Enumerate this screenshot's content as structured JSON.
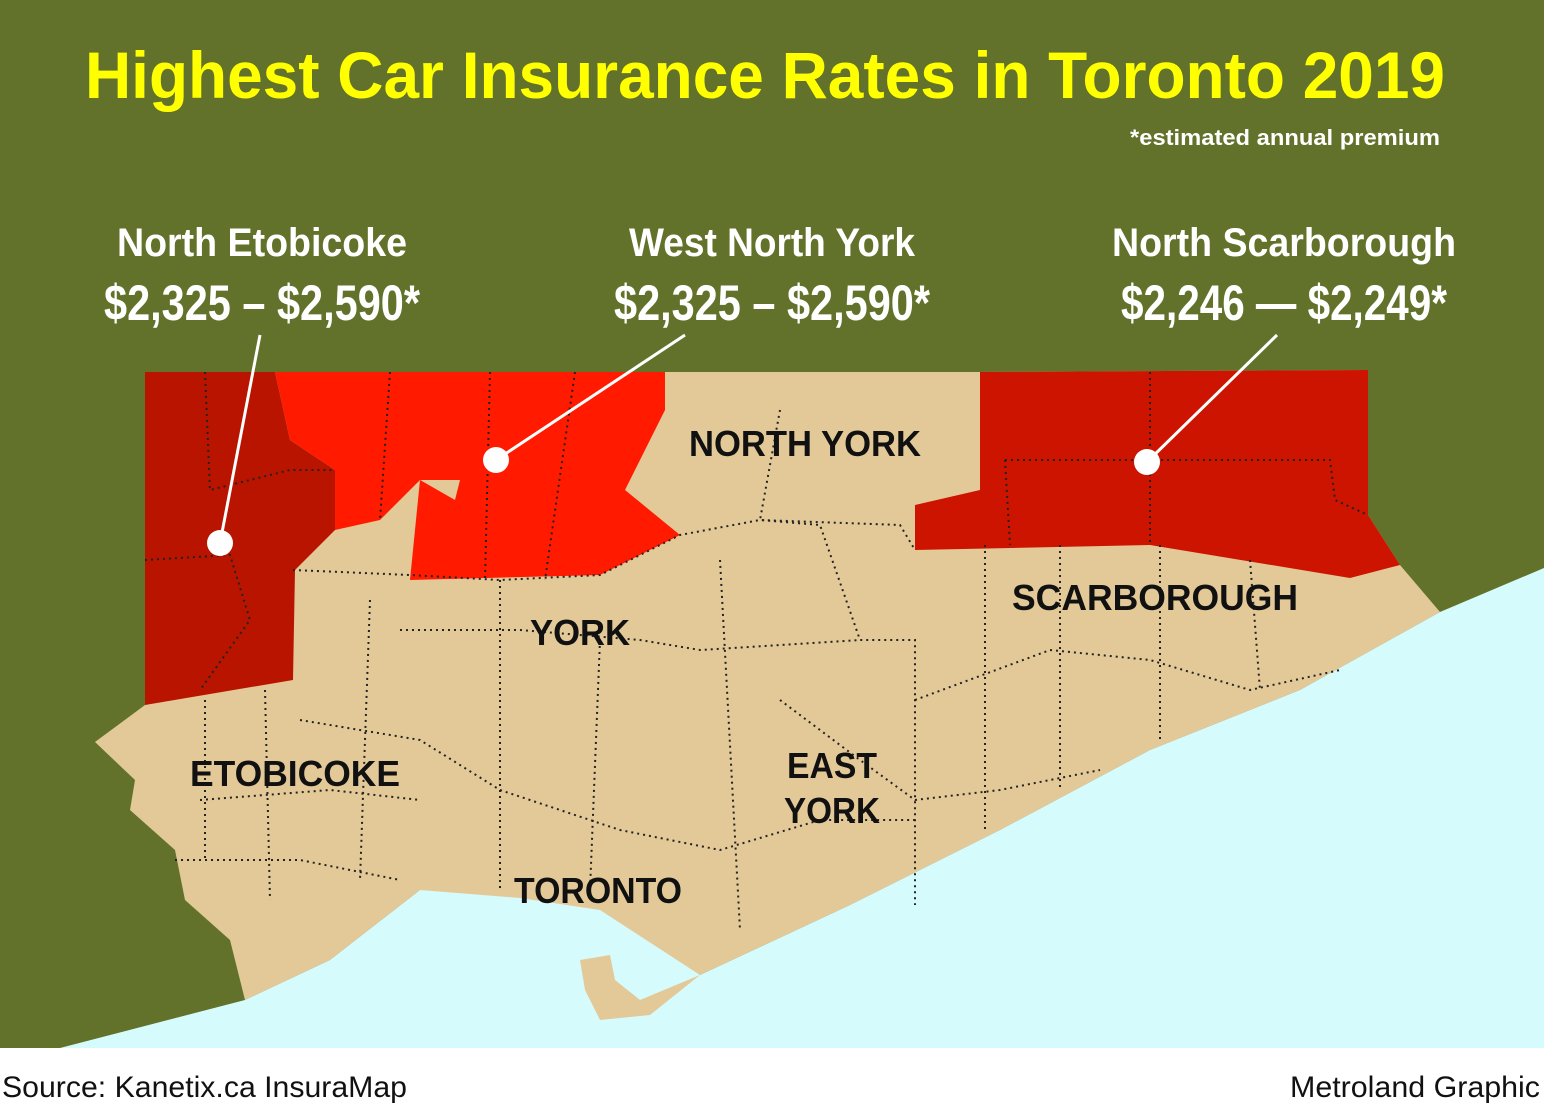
{
  "header": {
    "title": "Highest Car Insurance Rates in Toronto 2019",
    "note": "*estimated annual premium"
  },
  "callouts": [
    {
      "name": "North Etobicoke",
      "range": "$2,325 – $2,590*"
    },
    {
      "name": "West North York",
      "range": "$2,325 – $2,590*"
    },
    {
      "name": "North Scarborough",
      "range": "$2,246 — $2,249*"
    }
  ],
  "districts": [
    [
      "NORTH YORK"
    ],
    [
      "YORK"
    ],
    [
      "SCARBOROUGH"
    ],
    [
      "ETOBICOKE"
    ],
    [
      "EAST",
      "YORK"
    ],
    [
      "TORONTO"
    ]
  ],
  "footer": {
    "source": "Source: Kanetix.ca InsuraMap",
    "credit": "Metroland Graphic"
  }
}
